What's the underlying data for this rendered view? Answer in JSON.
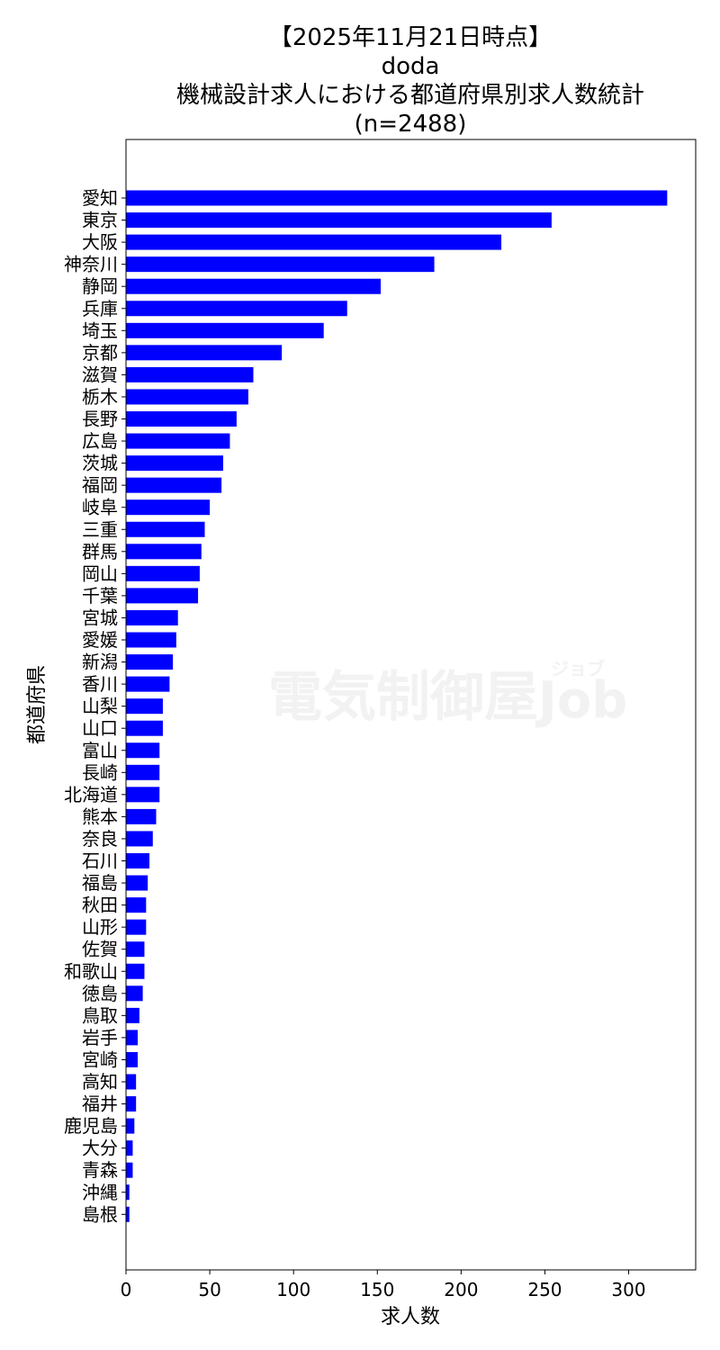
{
  "chart_data": {
    "type": "bar",
    "orientation": "horizontal",
    "title_lines": [
      "【2025年11月21日時点】",
      "doda",
      "機械設計求人における都道府県別求人数統計",
      "(n=2488)"
    ],
    "xlabel": "求人数",
    "ylabel": "都道府県",
    "xlim": [
      0,
      340
    ],
    "xticks": [
      0,
      50,
      100,
      150,
      200,
      250,
      300
    ],
    "bar_color": "#0000ff",
    "watermark": {
      "main": "電気制御屋",
      "job": "Job",
      "kana": "ジョブ"
    },
    "categories": [
      "愛知",
      "東京",
      "大阪",
      "神奈川",
      "静岡",
      "兵庫",
      "埼玉",
      "京都",
      "滋賀",
      "栃木",
      "長野",
      "広島",
      "茨城",
      "福岡",
      "岐阜",
      "三重",
      "群馬",
      "岡山",
      "千葉",
      "宮城",
      "愛媛",
      "新潟",
      "香川",
      "山梨",
      "山口",
      "富山",
      "長崎",
      "北海道",
      "熊本",
      "奈良",
      "石川",
      "福島",
      "秋田",
      "山形",
      "佐賀",
      "和歌山",
      "徳島",
      "鳥取",
      "岩手",
      "宮崎",
      "高知",
      "福井",
      "鹿児島",
      "大分",
      "青森",
      "沖縄",
      "島根"
    ],
    "values": [
      323,
      254,
      224,
      184,
      152,
      132,
      118,
      93,
      76,
      73,
      66,
      62,
      58,
      57,
      50,
      47,
      45,
      44,
      43,
      31,
      30,
      28,
      26,
      22,
      22,
      20,
      20,
      20,
      18,
      16,
      14,
      13,
      12,
      12,
      11,
      11,
      10,
      8,
      7,
      7,
      6,
      6,
      5,
      4,
      4,
      2,
      2
    ]
  }
}
